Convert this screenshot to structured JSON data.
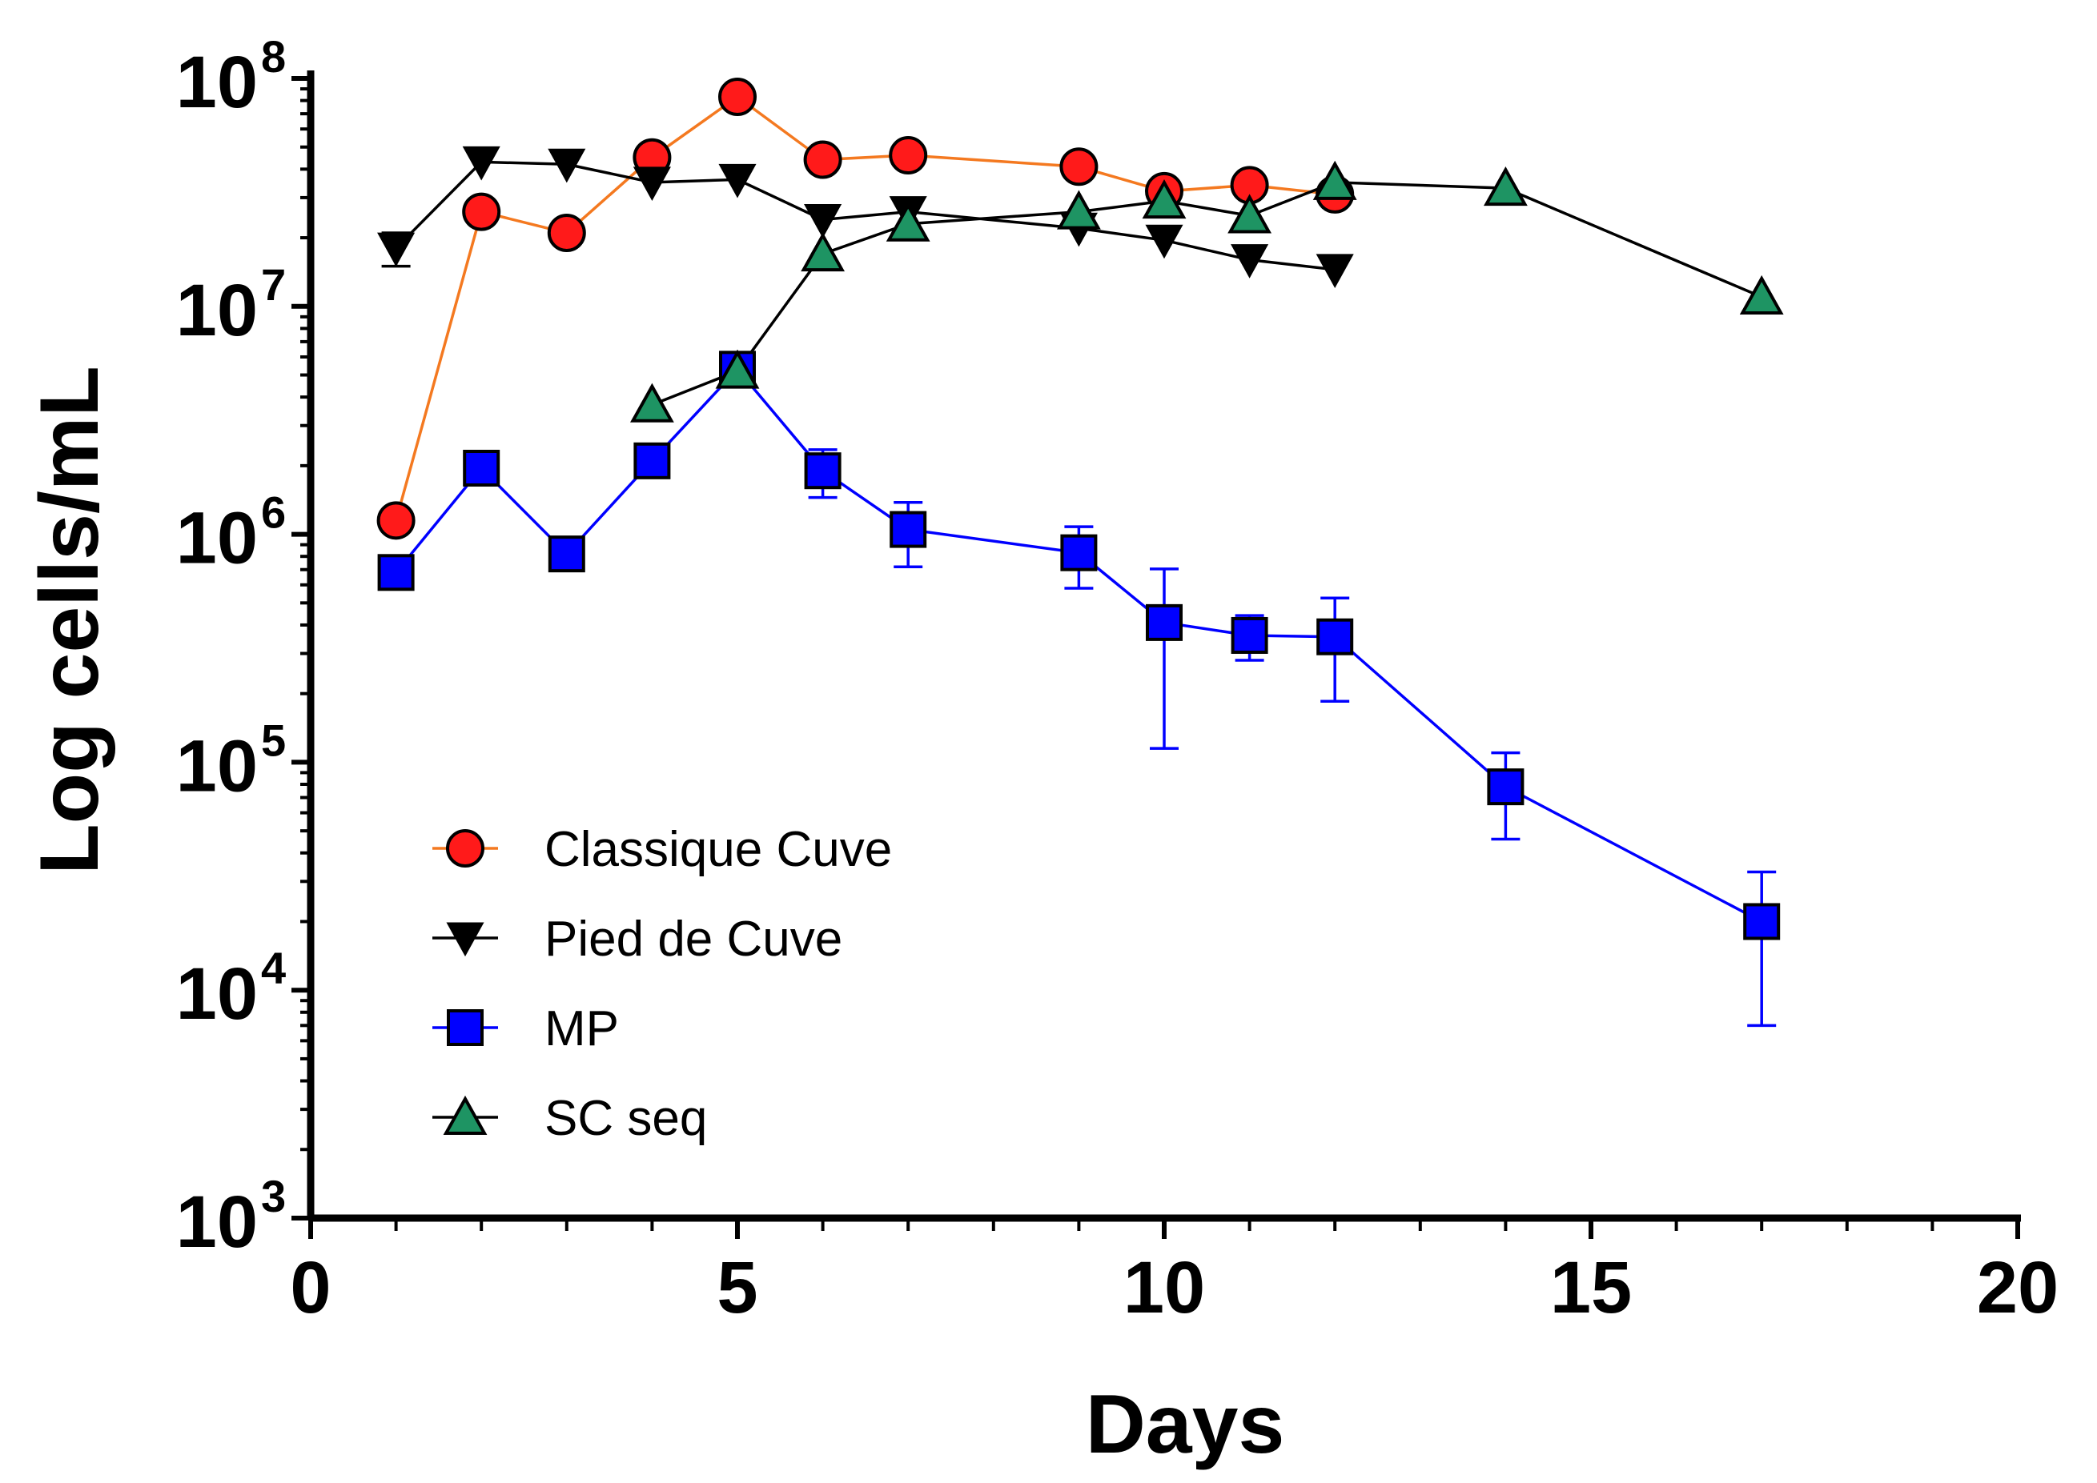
{
  "chart_data": {
    "type": "line",
    "title": "",
    "xlabel": "Days",
    "ylabel": "Log cells/mL",
    "xlim": [
      0,
      20
    ],
    "xticks": [
      "0",
      "5",
      "10",
      "15",
      "20"
    ],
    "y_scale": "log",
    "ylim": [
      1000,
      100000000
    ],
    "yticks": [
      {
        "base": "10",
        "exp": "3"
      },
      {
        "base": "10",
        "exp": "4"
      },
      {
        "base": "10",
        "exp": "5"
      },
      {
        "base": "10",
        "exp": "6"
      },
      {
        "base": "10",
        "exp": "7"
      },
      {
        "base": "10",
        "exp": "8"
      }
    ],
    "legend_position": "bottom-left",
    "series": [
      {
        "name": "Classique Cuve",
        "color": "#f47920",
        "marker": "circle",
        "marker_fill": "#ff1a1a",
        "x": [
          1,
          2,
          3,
          4,
          5,
          6,
          7,
          9,
          10,
          11,
          12
        ],
        "y": [
          1150000,
          26000000,
          21000000,
          45000000,
          83000000,
          44000000,
          46000000,
          41000000,
          32000000,
          34000000,
          31000000
        ],
        "err": [
          0,
          0,
          0,
          0,
          0,
          0,
          0,
          0,
          0,
          0,
          0
        ]
      },
      {
        "name": "Pied de Cuve",
        "color": "#000000",
        "marker": "triangle-down",
        "marker_fill": "#000000",
        "x": [
          1,
          2,
          3,
          4,
          5,
          6,
          7,
          9,
          10,
          11,
          12
        ],
        "y": [
          18000000,
          43000000,
          42000000,
          35000000,
          36000000,
          24000000,
          26000000,
          22000000,
          19500000,
          16000000,
          14500000
        ],
        "err": [
          3000000,
          0,
          0,
          0,
          0,
          0,
          0,
          0,
          0,
          0,
          0
        ]
      },
      {
        "name": "MP",
        "color": "#0000ff",
        "marker": "square",
        "marker_fill": "#0000ff",
        "x": [
          1,
          2,
          3,
          4,
          5,
          6,
          7,
          9,
          10,
          11,
          12,
          14,
          17
        ],
        "y": [
          680000,
          1950000,
          820000,
          2100000,
          5300000,
          1900000,
          1050000,
          830000,
          410000,
          360000,
          355000,
          78000,
          20000
        ],
        "err": [
          0,
          0,
          0,
          0,
          0,
          450000,
          330000,
          250000,
          295000,
          80000,
          170000,
          32000,
          13000
        ]
      },
      {
        "name": "SC seq",
        "color": "#000000",
        "marker": "triangle-up",
        "marker_fill": "#1e9463",
        "x": [
          4,
          5,
          6,
          7,
          9,
          10,
          11,
          12,
          14,
          17
        ],
        "y": [
          3700000,
          5200000,
          17000000,
          23000000,
          26000000,
          29000000,
          25000000,
          35000000,
          33000000,
          11000000
        ],
        "err": [
          0,
          0,
          0,
          0,
          0,
          0,
          0,
          0,
          0,
          0
        ]
      }
    ]
  }
}
